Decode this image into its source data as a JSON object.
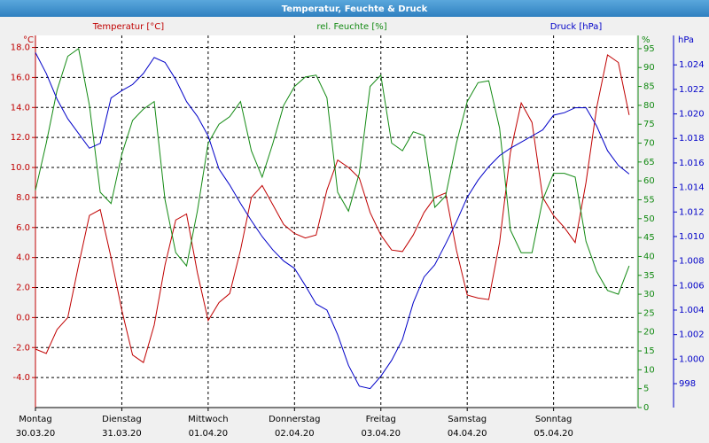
{
  "chart_data": {
    "type": "line",
    "title": "Temperatur, Feuchte & Druck",
    "ylabel": "°C",
    "y2label": "%",
    "y3label": "hPa",
    "x": [
      0,
      3,
      6,
      9,
      12,
      15,
      18,
      21,
      24,
      27,
      30,
      33,
      36,
      39,
      42,
      45,
      48,
      51,
      54,
      57,
      60,
      63,
      66,
      69,
      72,
      75,
      78,
      81,
      84,
      87,
      90,
      93,
      96,
      99,
      102,
      105,
      108,
      111,
      114,
      117,
      120,
      123,
      126,
      129,
      132,
      135,
      138,
      141,
      144,
      147,
      150,
      153,
      156,
      159,
      162,
      165
    ],
    "xlim": [
      0,
      167
    ],
    "xticks": [
      {
        "value": 0,
        "label": "30.03.20"
      },
      {
        "value": 24,
        "label": "31.03.20"
      },
      {
        "value": 48,
        "label": "01.04.20"
      },
      {
        "value": 72,
        "label": "02.04.20"
      },
      {
        "value": 96,
        "label": "03.04.20"
      },
      {
        "value": 120,
        "label": "04.04.20"
      },
      {
        "value": 144,
        "label": "05.04.20"
      }
    ],
    "xtick_days": [
      "Montag",
      "Dienstag",
      "Mittwoch",
      "Donnerstag",
      "Freitag",
      "Samstag",
      "Sonntag"
    ],
    "ylim": [
      -6,
      18.8
    ],
    "yticks": [
      {
        "value": -4,
        "label": "-4.0"
      },
      {
        "value": -2,
        "label": "-2.0"
      },
      {
        "value": 0,
        "label": "0.0"
      },
      {
        "value": 2,
        "label": "2.0"
      },
      {
        "value": 4,
        "label": "4.0"
      },
      {
        "value": 6,
        "label": "6.0"
      },
      {
        "value": 8,
        "label": "8.0"
      },
      {
        "value": 10,
        "label": "10.0"
      },
      {
        "value": 12,
        "label": "12.0"
      },
      {
        "value": 14,
        "label": "14.0"
      },
      {
        "value": 16,
        "label": "16.0"
      },
      {
        "value": 18,
        "label": "18.0"
      }
    ],
    "y2lim": [
      0,
      98.5
    ],
    "y2ticks": [
      0,
      5,
      10,
      15,
      20,
      25,
      30,
      35,
      40,
      45,
      50,
      55,
      60,
      65,
      70,
      75,
      80,
      85,
      90,
      95
    ],
    "y3lim": [
      996.05,
      1026.4
    ],
    "y3ticks": [
      998,
      {
        "value": 1000,
        "label": "1.000"
      },
      {
        "value": 1002,
        "label": "1.002"
      },
      {
        "value": 1004,
        "label": "1.004"
      },
      {
        "value": 1006,
        "label": "1.006"
      },
      {
        "value": 1008,
        "label": "1.008"
      },
      {
        "value": 1010,
        "label": "1.010"
      },
      {
        "value": 1012,
        "label": "1.012"
      },
      {
        "value": 1014,
        "label": "1.014"
      },
      {
        "value": 1016,
        "label": "1.016"
      },
      {
        "value": 1018,
        "label": "1.018"
      },
      {
        "value": 1020,
        "label": "1.020"
      },
      {
        "value": 1022,
        "label": "1.022"
      },
      {
        "value": 1024,
        "label": "1.024"
      }
    ],
    "grid": true,
    "series": [
      {
        "name": "Temperatur [°C]",
        "color": "#c00000",
        "axis": "y",
        "values": [
          -2.1,
          -2.4,
          -0.8,
          0,
          3.5,
          6.8,
          7.2,
          4,
          0.5,
          -2.5,
          -3,
          -0.5,
          3.5,
          6.5,
          6.9,
          3,
          -0.2,
          1,
          1.6,
          4.5,
          8,
          8.8,
          7.5,
          6.2,
          5.6,
          5.3,
          5.5,
          8.5,
          10.5,
          10,
          9.3,
          7,
          5.5,
          4.5,
          4.4,
          5.5,
          7,
          8,
          8.3,
          4.5,
          1.5,
          1.3,
          1.2,
          5,
          11,
          14.3,
          13,
          8,
          6.8,
          6,
          5,
          9,
          14,
          17.5,
          17,
          13.5
        ]
      },
      {
        "name": "rel. Feuchte [%]",
        "color": "#138a13",
        "axis": "y2",
        "values": [
          57.5,
          70,
          84,
          93,
          95,
          80,
          57,
          54,
          67,
          76,
          79,
          81,
          55,
          41,
          37.5,
          52,
          70,
          75,
          77,
          81,
          68,
          61,
          70,
          80,
          85,
          87.5,
          88,
          82,
          57,
          52,
          62,
          85,
          88,
          70,
          68,
          73,
          72,
          53,
          56,
          70,
          81,
          86,
          86.5,
          74,
          47,
          41,
          41,
          55,
          62,
          62,
          61,
          44,
          36,
          31,
          30,
          37.5
        ]
      },
      {
        "name": "Druck [hPa]",
        "color": "#0000c8",
        "axis": "y3",
        "values": [
          1025,
          1023.3,
          1021.2,
          1019.6,
          1018.4,
          1017.2,
          1017.6,
          1021.3,
          1021.9,
          1022.4,
          1023.3,
          1024.6,
          1024.2,
          1022.8,
          1021,
          1019.8,
          1018.2,
          1015.5,
          1014.2,
          1012.7,
          1011.3,
          1010,
          1008.9,
          1008,
          1007.4,
          1006,
          1004.5,
          1004,
          1002,
          999.5,
          997.8,
          997.6,
          998.6,
          999.9,
          1001.6,
          1004.6,
          1006.7,
          1007.7,
          1009.4,
          1011.2,
          1013.2,
          1014.6,
          1015.7,
          1016.6,
          1017.2,
          1017.7,
          1018.2,
          1018.7,
          1019.9,
          1020.1,
          1020.5,
          1020.5,
          1019,
          1017,
          1015.8,
          1015.1
        ]
      }
    ]
  }
}
